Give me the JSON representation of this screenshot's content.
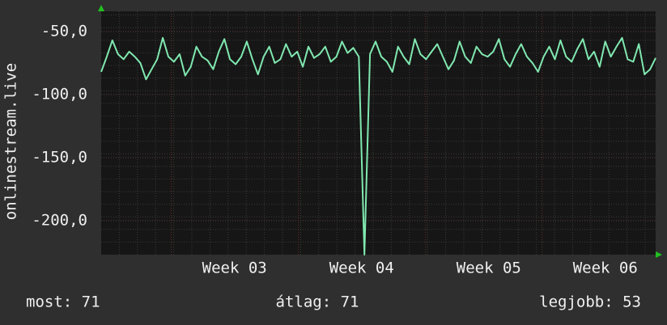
{
  "chart_data": {
    "type": "line",
    "y_label": "onlinestream.live",
    "series": [
      {
        "name": "onlinestream.live",
        "color": "#80e8b0",
        "values": [
          -82,
          -70,
          -57,
          -68,
          -72,
          -66,
          -70,
          -75,
          -88,
          -80,
          -72,
          -55,
          -70,
          -74,
          -68,
          -85,
          -78,
          -62,
          -70,
          -73,
          -80,
          -66,
          -56,
          -72,
          -76,
          -70,
          -58,
          -72,
          -84,
          -70,
          -62,
          -75,
          -72,
          -60,
          -70,
          -66,
          -78,
          -62,
          -71,
          -68,
          -62,
          -74,
          -70,
          -58,
          -67,
          -63,
          -70,
          -227,
          -68,
          -58,
          -70,
          -74,
          -82,
          -62,
          -70,
          -76,
          -56,
          -68,
          -72,
          -66,
          -60,
          -70,
          -80,
          -73,
          -58,
          -70,
          -75,
          -62,
          -68,
          -70,
          -66,
          -56,
          -72,
          -78,
          -68,
          -60,
          -70,
          -75,
          -82,
          -70,
          -62,
          -72,
          -57,
          -70,
          -74,
          -64,
          -56,
          -72,
          -66,
          -78,
          -58,
          -70,
          -62,
          -55,
          -72,
          -74,
          -60,
          -84,
          -80,
          -71
        ]
      }
    ],
    "xlim": [
      0,
      99
    ],
    "xticks": [
      {
        "value": 23.8,
        "label": "Week 03"
      },
      {
        "value": 46.5,
        "label": "Week 04"
      },
      {
        "value": 69.2,
        "label": "Week 05"
      },
      {
        "value": 90,
        "label": "Week 06"
      }
    ],
    "ylim": [
      -227,
      -34
    ],
    "yticks": [
      {
        "value": -50,
        "label": "-50,0"
      },
      {
        "value": -100,
        "label": "-100,0"
      },
      {
        "value": -150,
        "label": "-150,0"
      },
      {
        "value": -200,
        "label": "-200,0"
      }
    ],
    "grid": true,
    "footer": [
      "most: 71",
      "átlag: 71",
      "legjobb: 53"
    ]
  }
}
